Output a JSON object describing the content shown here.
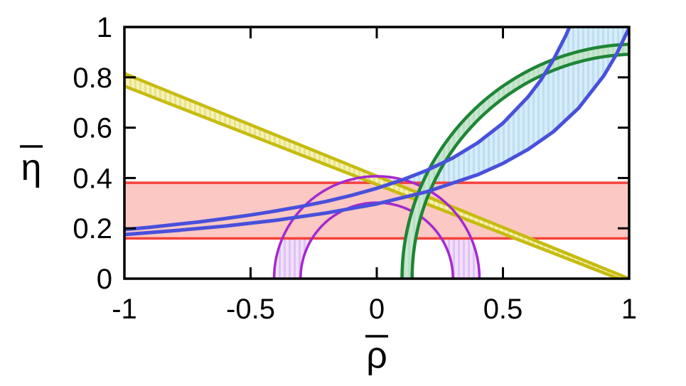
{
  "page": {
    "background_color": "#ffffff"
  },
  "chart_data": {
    "type": "line",
    "title": "",
    "xlabel": "ρ̄",
    "ylabel": "η̄",
    "xlim": [
      -1,
      1
    ],
    "ylim": [
      0,
      1
    ],
    "x_ticks": [
      -1,
      -0.5,
      0,
      0.5,
      1
    ],
    "x_tick_labels": [
      "-1",
      "-0.5",
      "0",
      "0.5",
      "1"
    ],
    "y_ticks": [
      0,
      0.2,
      0.4,
      0.6,
      0.8,
      1
    ],
    "y_tick_labels": [
      "0",
      "0.2",
      "0.4",
      "0.6",
      "0.8",
      "1"
    ],
    "grid": false,
    "legend": "none",
    "frame_color": "#000000",
    "text_color": "#000000",
    "constraints": [
      {
        "id": "red-horizontal-band",
        "shape": "horizontal-band",
        "y_range": [
          0.16,
          0.381
        ],
        "line_color": "#f5423c",
        "fill_color": "#fcc8c3",
        "hatch_color": null,
        "line_width": 3.5
      },
      {
        "id": "yellow-wedge-band",
        "shape": "polygon-band",
        "top_edge": [
          [
            -1,
            0.815
          ],
          [
            1,
            0.0
          ]
        ],
        "bottom_edge": [
          [
            -1,
            0.765
          ],
          [
            0.958,
            0.0
          ]
        ],
        "line_color": "#c6bb10",
        "fill_color": "#f5f2ba",
        "hatch_color": "#eae388",
        "line_width": 4.5
      },
      {
        "id": "blue-hyperbola-band",
        "shape": "curve-band",
        "upper_edge": [
          [
            -1,
            0.195
          ],
          [
            -0.9,
            0.204
          ],
          [
            -0.8,
            0.215
          ],
          [
            -0.7,
            0.226
          ],
          [
            -0.6,
            0.239
          ],
          [
            -0.5,
            0.253
          ],
          [
            -0.4,
            0.269
          ],
          [
            -0.3,
            0.287
          ],
          [
            -0.2,
            0.307
          ],
          [
            -0.1,
            0.331
          ],
          [
            0,
            0.359
          ],
          [
            0.1,
            0.392
          ],
          [
            0.2,
            0.431
          ],
          [
            0.3,
            0.479
          ],
          [
            0.4,
            0.54
          ],
          [
            0.5,
            0.618
          ],
          [
            0.6,
            0.723
          ],
          [
            0.65,
            0.789
          ],
          [
            0.7,
            0.87
          ],
          [
            0.75,
            0.968
          ],
          [
            0.78,
            1.039
          ],
          [
            0.82,
            1.151
          ]
        ],
        "lower_edge": [
          [
            -1,
            0.175
          ],
          [
            -0.8,
            0.191
          ],
          [
            -0.6,
            0.209
          ],
          [
            -0.4,
            0.232
          ],
          [
            -0.2,
            0.261
          ],
          [
            0,
            0.297
          ],
          [
            0.2,
            0.346
          ],
          [
            0.4,
            0.413
          ],
          [
            0.5,
            0.458
          ],
          [
            0.6,
            0.514
          ],
          [
            0.7,
            0.584
          ],
          [
            0.8,
            0.678
          ],
          [
            0.9,
            0.807
          ],
          [
            0.95,
            0.892
          ],
          [
            1,
            0.997
          ]
        ],
        "fill_bridge": [
          [
            1.1,
            1.25
          ]
        ],
        "line_color": "#4850dc",
        "fill_color": "#d8ecf9",
        "hatch_color": "#bddef2",
        "line_width": 5
      },
      {
        "id": "green-circle-band",
        "shape": "circle-band",
        "center": [
          1.032,
          0
        ],
        "r_outer": 0.932,
        "r_inner": 0.892,
        "theta_range_deg": [
          75,
          180
        ],
        "line_color": "#1e8535",
        "fill_color": "#c9e7d1",
        "hatch_color": "#b9dfc4",
        "line_width": 4.5
      },
      {
        "id": "purple-circle-band",
        "shape": "circle-band",
        "center": [
          0,
          0
        ],
        "r_outer": 0.407,
        "r_inner": 0.302,
        "theta_range_deg": [
          0,
          180
        ],
        "line_color": "#a428cd",
        "fill_color": "#f2e0fb",
        "hatch_color": "#e0c2f4",
        "line_width": 3.5
      }
    ]
  }
}
